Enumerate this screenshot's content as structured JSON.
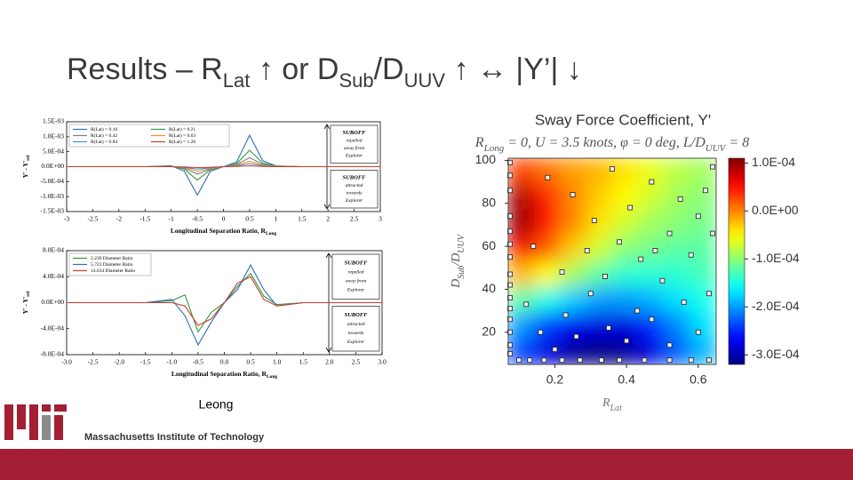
{
  "title": [
    "Results – R",
    "Lat",
    " ↑ or D",
    "Sub",
    "/D",
    "UUV",
    " ↑ ↔ |Y’| ↓"
  ],
  "caption": "Leong",
  "footer": "Massachusetts Institute of Technology",
  "chart_data": [
    {
      "type": "line",
      "xlabel": [
        "Longitudinal Separation Ratio, R",
        "Long"
      ],
      "ylabel": [
        "Y' - Y'",
        "ref"
      ],
      "x": [
        -3,
        -2.5,
        -2,
        -1.5,
        -1,
        -0.75,
        -0.5,
        -0.25,
        0,
        0.25,
        0.5,
        0.75,
        1,
        1.5,
        2,
        2.5,
        3
      ],
      "xlim": [
        -3,
        3
      ],
      "xticks": [
        -3,
        -2.5,
        -2,
        -1.5,
        -1,
        -0.5,
        0,
        0.5,
        1,
        1.5,
        2,
        2.5,
        3
      ],
      "ylim": [
        -0.0015,
        0.0015
      ],
      "yticks": [
        {
          "value": 0.0015,
          "label": "1.5E-03"
        },
        {
          "value": 0.001,
          "label": "1.0E-03"
        },
        {
          "value": 0.0005,
          "label": "5.0E-04"
        },
        {
          "value": 0,
          "label": "0.0E+00"
        },
        {
          "value": -0.0005,
          "label": "-5.0E-04"
        },
        {
          "value": -0.001,
          "label": "-1.0E-03"
        },
        {
          "value": -0.0015,
          "label": "-1.5E-03"
        }
      ],
      "legend": "upper left",
      "legend_columns": 2,
      "series": [
        {
          "name": "R(Lat) = 0.10",
          "color": "#2e6fb6",
          "values": [
            0,
            0,
            0,
            0,
            3e-05,
            -0.00015,
            -0.00095,
            -0.00015,
            0,
            0.00015,
            0.00105,
            0.0002,
            3e-05,
            0,
            0,
            0,
            0
          ]
        },
        {
          "name": "R(Lat) = 0.21",
          "color": "#2f9a3a",
          "values": [
            0,
            0,
            0,
            0,
            2e-05,
            -8e-05,
            -0.00045,
            -0.0001,
            0,
            0.0001,
            0.00055,
            0.00012,
            2e-05,
            0,
            0,
            0,
            0
          ]
        },
        {
          "name": "R(Lat) = 0.42",
          "color": "#7f7f7f",
          "values": [
            0,
            0,
            0,
            0,
            1e-05,
            -5e-05,
            -0.00025,
            -8e-05,
            0,
            7e-05,
            0.0003,
            8e-05,
            1e-05,
            0,
            0,
            0,
            0
          ]
        },
        {
          "name": "R(Lat) = 0.63",
          "color": "#e8952c",
          "values": [
            0,
            0,
            0,
            0,
            0,
            -3e-05,
            -0.00015,
            -6e-05,
            0,
            5e-05,
            0.00018,
            5e-05,
            1e-05,
            0,
            0,
            0,
            0
          ]
        },
        {
          "name": "R(Lat) = 0.84",
          "color": "#3d8fd0",
          "values": [
            0,
            0,
            0,
            0,
            0,
            -2e-05,
            -8e-05,
            -4e-05,
            0,
            3e-05,
            0.0001,
            3e-05,
            0,
            0,
            0,
            0,
            0
          ]
        },
        {
          "name": "R(Lat) = 1.26",
          "color": "#d03a2e",
          "values": [
            0,
            0,
            0,
            0,
            0,
            -1e-05,
            -3e-05,
            -2e-05,
            0,
            1e-05,
            3e-05,
            1e-05,
            0,
            0,
            0,
            0,
            0
          ]
        }
      ],
      "annotations": [
        [
          "SUBOFF",
          "repelled",
          "away from",
          "Explorer"
        ],
        [
          "SUBOFF",
          "attracted",
          "towards",
          "Explorer"
        ]
      ]
    },
    {
      "type": "line",
      "xlabel": [
        "Longitudinal Separation Ratio, R",
        "Long"
      ],
      "ylabel": [
        "Y' - Y'",
        "ref"
      ],
      "x": [
        -3,
        -2.5,
        -2,
        -1.5,
        -1,
        -0.75,
        -0.5,
        -0.25,
        0,
        0.25,
        0.5,
        0.75,
        1,
        1.5,
        2,
        2.5,
        3
      ],
      "xlim": [
        -3,
        3
      ],
      "xticks": [
        {
          "value": -3,
          "label": "-3.0"
        },
        -2.5,
        {
          "value": -2,
          "label": "-2.0"
        },
        -1.5,
        {
          "value": -1,
          "label": "-1.0"
        },
        -0.5,
        {
          "value": 0,
          "label": "0.0"
        },
        0.5,
        {
          "value": 1,
          "label": "1.0"
        },
        1.5,
        {
          "value": 2,
          "label": "2.0"
        },
        2.5,
        {
          "value": 3,
          "label": "3.0"
        }
      ],
      "ylim": [
        -0.0008,
        0.0008
      ],
      "yticks": [
        {
          "value": 0.0008,
          "label": "8.0E-04"
        },
        {
          "value": 0.0004,
          "label": "4.0E-04"
        },
        {
          "value": 0,
          "label": "0.0E+00"
        },
        {
          "value": -0.0004,
          "label": "-4.0E-04"
        },
        {
          "value": -0.0008,
          "label": "-8.0E-04"
        }
      ],
      "legend": "upper left",
      "legend_columns": 1,
      "series": [
        {
          "name": "2.239 Diameter Ratio",
          "color": "#2f9a3a",
          "values": [
            0,
            0,
            0,
            0,
            3e-05,
            0.00012,
            -0.00045,
            -0.00015,
            0,
            0.00025,
            0.00045,
            0.0001,
            -3e-05,
            0,
            0,
            0,
            0
          ]
        },
        {
          "name": "5.723 Diameter Ratio",
          "color": "#2e6fb6",
          "values": [
            0,
            0,
            0,
            0,
            5e-05,
            -0.0002,
            -0.00065,
            -0.0003,
            0,
            0.0002,
            0.00058,
            0.0002,
            -5e-05,
            0,
            0,
            0,
            0
          ]
        },
        {
          "name": "14.634 Diameter Ratio",
          "color": "#d03a2e",
          "values": [
            0,
            0,
            0,
            0,
            0,
            -5e-05,
            -0.00035,
            -0.00025,
            0,
            0.0003,
            0.0004,
            5e-05,
            -5e-05,
            0,
            0,
            0,
            0
          ]
        }
      ],
      "annotations": [
        [
          "SUBOFF",
          "repelled",
          "away from",
          "Explorer"
        ],
        [
          "SUBOFF",
          "attracted",
          "towards",
          "Explorer"
        ]
      ]
    },
    {
      "type": "heatmap",
      "title": "Sway Force Coefficient, Y'",
      "subtitle": [
        "R",
        "Long",
        " = 0, U = 3.5 knots, φ = 0 deg, L/D",
        "UUV",
        " = 8"
      ],
      "xlabel": [
        "R",
        "Lat"
      ],
      "ylabel": [
        "D",
        "Sub",
        "/D",
        "UUV"
      ],
      "xlim": [
        0.07,
        0.65
      ],
      "ylim": [
        5,
        101
      ],
      "xticks": [
        0.2,
        0.4,
        0.6
      ],
      "yticks": [
        20,
        40,
        60,
        80,
        100
      ],
      "x": [
        0.106,
        0.179,
        0.251,
        0.324,
        0.396,
        0.469,
        0.541,
        0.614
      ],
      "y": [
        95,
        83,
        71,
        59,
        47,
        35,
        23,
        11
      ],
      "z": [
        [
          3e-05,
          1e-05,
          -1e-05,
          -2e-05,
          -4e-05,
          -6e-05,
          -8e-05,
          -9e-05
        ],
        [
          9e-05,
          4e-05,
          0,
          -3e-05,
          -5e-05,
          -7e-05,
          -9e-05,
          -0.0001
        ],
        [
          0.0001,
          5e-05,
          0,
          -4e-05,
          -7e-05,
          -9e-05,
          -0.0001,
          -0.00011
        ],
        [
          6e-05,
          2e-05,
          -3e-05,
          -7e-05,
          -0.0001,
          -0.00011,
          -0.00012,
          -0.00012
        ],
        [
          -2e-05,
          -5e-05,
          -9e-05,
          -0.00012,
          -0.00014,
          -0.00014,
          -0.00014,
          -0.00013
        ],
        [
          -0.00012,
          -0.00015,
          -0.00018,
          -0.0002,
          -0.0002,
          -0.00019,
          -0.00017,
          -0.00015
        ],
        [
          -0.0002,
          -0.00024,
          -0.00027,
          -0.00028,
          -0.00028,
          -0.00025,
          -0.00021,
          -0.00017
        ],
        [
          -0.00024,
          -0.00028,
          -0.00031,
          -0.00032,
          -0.00031,
          -0.00028,
          -0.00023,
          -0.00019
        ]
      ],
      "clim": [
        -0.00032,
        0.00011
      ],
      "colormap": "jet",
      "colorbar_ticks": [
        {
          "value": 0.0001,
          "label": "1.0E-04"
        },
        {
          "value": 0,
          "label": "0.0E+00"
        },
        {
          "value": -0.0001,
          "label": "-1.0E-04"
        },
        {
          "value": -0.0002,
          "label": "-2.0E-04"
        },
        {
          "value": -0.0003,
          "label": "-3.0E-04"
        }
      ],
      "points": {
        "x": [
          0.075,
          0.075,
          0.075,
          0.075,
          0.075,
          0.075,
          0.075,
          0.075,
          0.075,
          0.075,
          0.075,
          0.075,
          0.075,
          0.075,
          0.075,
          0.1,
          0.13,
          0.17,
          0.22,
          0.27,
          0.33,
          0.38,
          0.45,
          0.52,
          0.58,
          0.63,
          0.12,
          0.16,
          0.2,
          0.23,
          0.26,
          0.3,
          0.35,
          0.4,
          0.43,
          0.47,
          0.52,
          0.56,
          0.6,
          0.63,
          0.5,
          0.44,
          0.38,
          0.31,
          0.25,
          0.18,
          0.36,
          0.47,
          0.55,
          0.6,
          0.64,
          0.58,
          0.52,
          0.41,
          0.29,
          0.22,
          0.14,
          0.62,
          0.64,
          0.34,
          0.48
        ],
        "y": [
          10,
          14,
          20,
          26,
          31,
          36,
          42,
          47,
          55,
          61,
          67,
          74,
          86,
          93,
          99,
          7,
          7,
          7,
          7,
          7,
          7,
          7,
          7,
          7,
          7,
          7,
          33,
          20,
          12,
          28,
          18,
          38,
          22,
          16,
          30,
          26,
          14,
          34,
          20,
          38,
          44,
          54,
          62,
          72,
          84,
          92,
          96,
          90,
          82,
          74,
          66,
          56,
          66,
          78,
          58,
          48,
          60,
          86,
          97,
          46,
          58
        ]
      }
    }
  ]
}
